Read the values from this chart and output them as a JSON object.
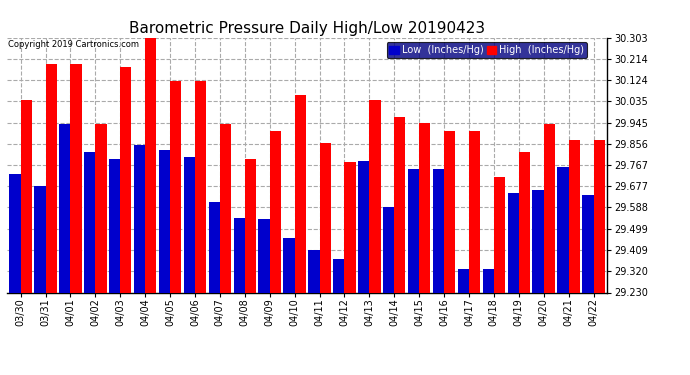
{
  "title": "Barometric Pressure Daily High/Low 20190423",
  "copyright": "Copyright 2019 Cartronics.com",
  "legend_low": "Low  (Inches/Hg)",
  "legend_high": "High  (Inches/Hg)",
  "dates": [
    "03/30",
    "03/31",
    "04/01",
    "04/02",
    "04/03",
    "04/04",
    "04/05",
    "04/06",
    "04/07",
    "04/08",
    "04/09",
    "04/10",
    "04/11",
    "04/12",
    "04/13",
    "04/14",
    "04/15",
    "04/16",
    "04/17",
    "04/18",
    "04/19",
    "04/20",
    "04/21",
    "04/22"
  ],
  "low_values": [
    29.73,
    29.68,
    29.94,
    29.82,
    29.79,
    29.85,
    29.83,
    29.8,
    29.61,
    29.545,
    29.54,
    29.46,
    29.41,
    29.37,
    29.785,
    29.59,
    29.75,
    29.75,
    29.33,
    29.33,
    29.65,
    29.66,
    29.76,
    29.64
  ],
  "high_values": [
    30.04,
    30.19,
    30.19,
    29.94,
    30.18,
    30.31,
    30.12,
    30.12,
    29.94,
    29.79,
    29.91,
    30.06,
    29.86,
    29.78,
    30.04,
    29.97,
    29.945,
    29.91,
    29.91,
    29.715,
    29.82,
    29.94,
    29.87,
    29.87
  ],
  "ylim_min": 29.23,
  "ylim_max": 30.303,
  "yticks": [
    29.23,
    29.32,
    29.409,
    29.499,
    29.588,
    29.677,
    29.767,
    29.856,
    29.945,
    30.035,
    30.124,
    30.214,
    30.303
  ],
  "bar_color_low": "#0000cc",
  "bar_color_high": "#ff0000",
  "bg_color": "#ffffff",
  "title_fontsize": 11,
  "tick_fontsize": 7,
  "legend_fontsize": 7
}
